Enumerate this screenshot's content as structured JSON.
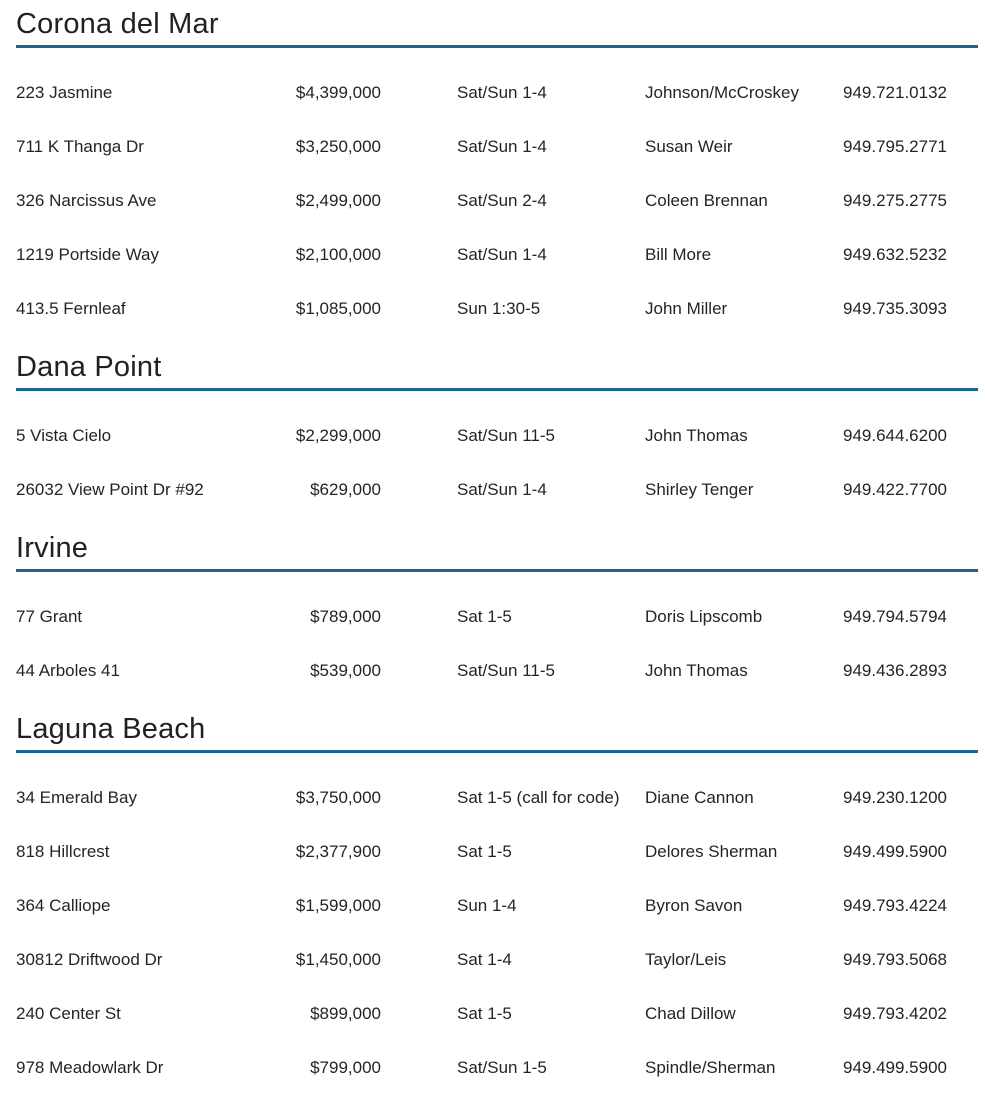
{
  "styles": {
    "rule_color": "#1f6490",
    "text_color": "#272324"
  },
  "sections": [
    {
      "city": "Corona del Mar",
      "listings": [
        {
          "address": "223 Jasmine",
          "price": "$4,399,000",
          "time": "Sat/Sun 1-4",
          "agent": "Johnson/McCroskey",
          "phone": "949.721.0132"
        },
        {
          "address": "711 K Thanga Dr",
          "price": "$3,250,000",
          "time": "Sat/Sun 1-4",
          "agent": "Susan Weir",
          "phone": "949.795.2771"
        },
        {
          "address": "326 Narcissus Ave",
          "price": "$2,499,000",
          "time": "Sat/Sun 2-4",
          "agent": "Coleen Brennan",
          "phone": "949.275.2775"
        },
        {
          "address": "1219 Portside Way",
          "price": "$2,100,000",
          "time": "Sat/Sun 1-4",
          "agent": "Bill More",
          "phone": "949.632.5232"
        },
        {
          "address": "413.5 Fernleaf",
          "price": "$1,085,000",
          "time": "Sun 1:30-5",
          "agent": "John Miller",
          "phone": "949.735.3093"
        }
      ]
    },
    {
      "city": "Dana Point",
      "listings": [
        {
          "address": "5 Vista Cielo",
          "price": "$2,299,000",
          "time": "Sat/Sun 11-5",
          "agent": "John Thomas",
          "phone": "949.644.6200"
        },
        {
          "address": "26032 View Point Dr #92",
          "price": "$629,000",
          "time": "Sat/Sun 1-4",
          "agent": "Shirley Tenger",
          "phone": "949.422.7700"
        }
      ]
    },
    {
      "city": "Irvine",
      "listings": [
        {
          "address": "77 Grant",
          "price": "$789,000",
          "time": "Sat 1-5",
          "agent": "Doris Lipscomb",
          "phone": "949.794.5794"
        },
        {
          "address": "44 Arboles 41",
          "price": "$539,000",
          "time": "Sat/Sun 11-5",
          "agent": "John Thomas",
          "phone": "949.436.2893"
        }
      ]
    },
    {
      "city": "Laguna Beach",
      "listings": [
        {
          "address": "34 Emerald Bay",
          "price": "$3,750,000",
          "time": "Sat 1-5 (call for code)",
          "agent": "Diane Cannon",
          "phone": "949.230.1200"
        },
        {
          "address": "818 Hillcrest",
          "price": "$2,377,900",
          "time": "Sat 1-5",
          "agent": "Delores Sherman",
          "phone": "949.499.5900"
        },
        {
          "address": "364 Calliope",
          "price": "$1,599,000",
          "time": "Sun 1-4",
          "agent": "Byron Savon",
          "phone": "949.793.4224"
        },
        {
          "address": "30812 Driftwood Dr",
          "price": "$1,450,000",
          "time": "Sat 1-4",
          "agent": "Taylor/Leis",
          "phone": "949.793.5068"
        },
        {
          "address": "240 Center St",
          "price": "$899,000",
          "time": "Sat 1-5",
          "agent": "Chad Dillow",
          "phone": "949.793.4202"
        },
        {
          "address": "978 Meadowlark Dr",
          "price": "$799,000",
          "time": "Sat/Sun 1-5",
          "agent": "Spindle/Sherman",
          "phone": "949.499.5900"
        }
      ]
    }
  ]
}
